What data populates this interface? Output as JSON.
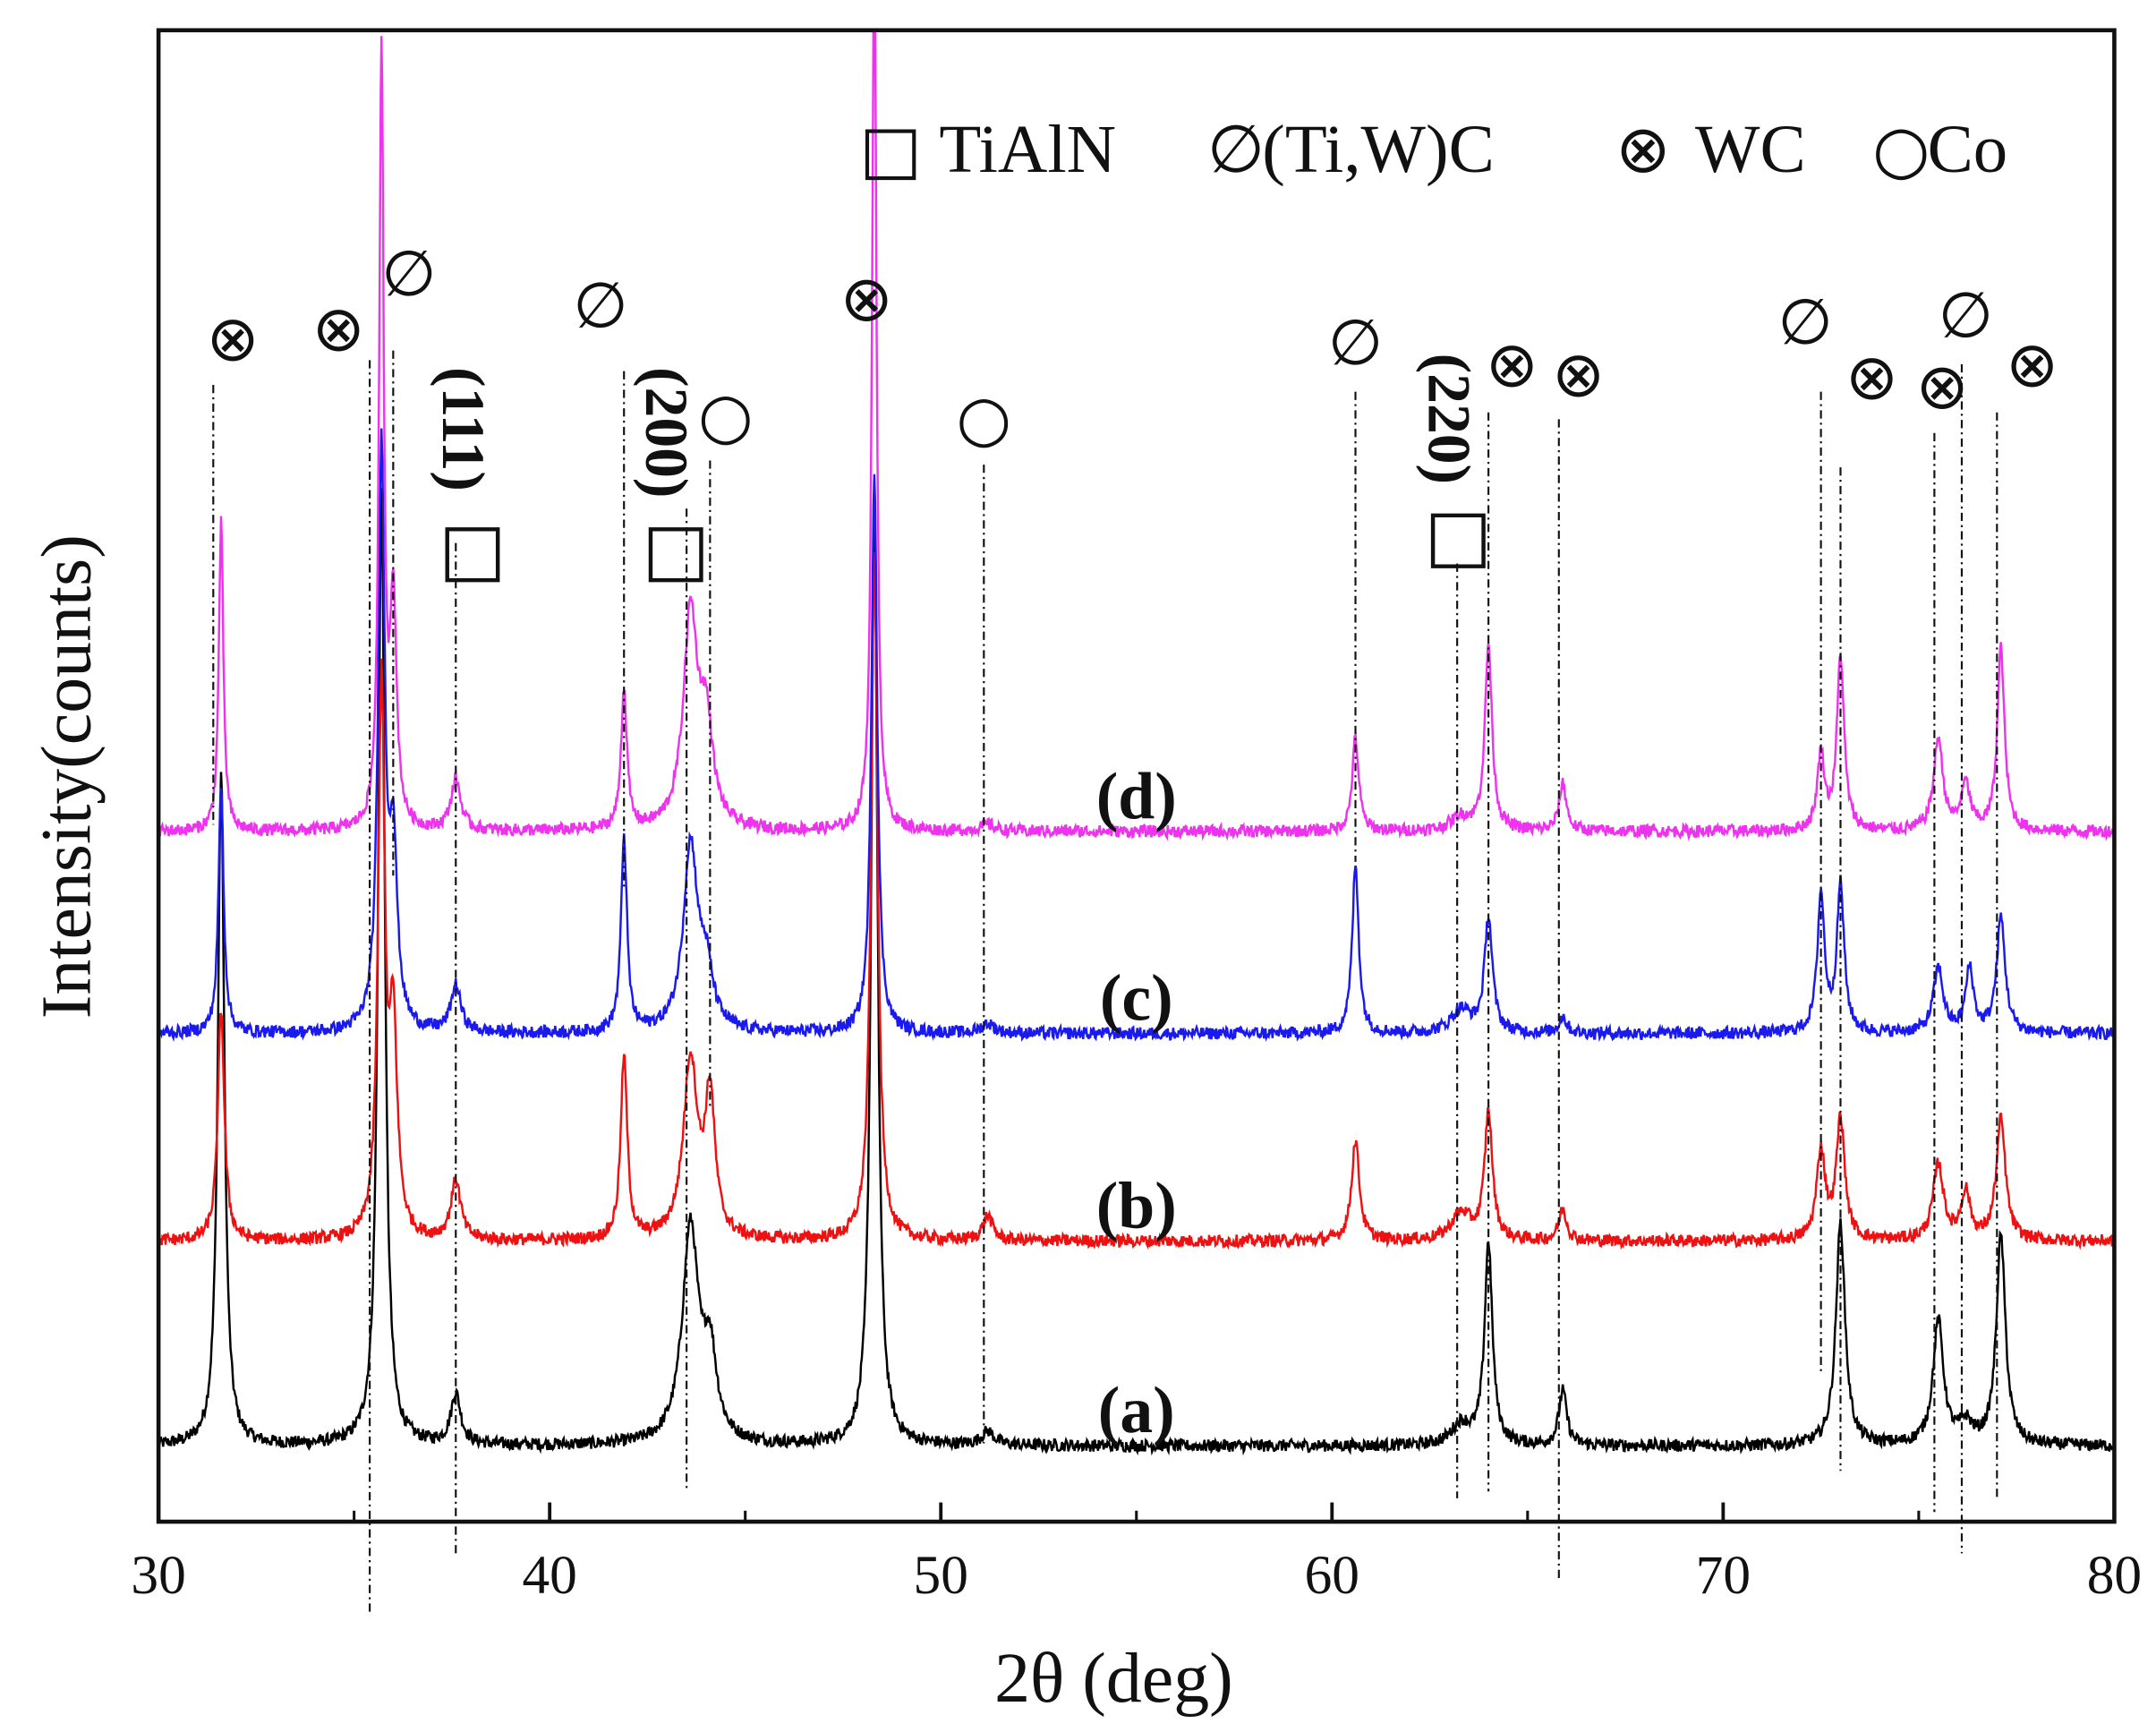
{
  "chart_data": {
    "type": "line",
    "title": "",
    "xlabel": "2θ (deg)",
    "ylabel": "Intensity(counts)",
    "xlim": [
      30,
      80
    ],
    "ylim": [
      0,
      1085
    ],
    "x_ticks": [
      30,
      40,
      50,
      60,
      70,
      80
    ],
    "x_tick_labels": [
      "30",
      "40",
      "50",
      "60",
      "70",
      "80"
    ],
    "x_minor_ticks": [
      35,
      45,
      55,
      65,
      75
    ],
    "grid": false,
    "legend": {
      "placement": "top-right",
      "entries": [
        {
          "symbol": "□",
          "label": "TiAlN"
        },
        {
          "symbol": "∅",
          "label": "(Ti,W)C"
        },
        {
          "symbol": "⊗",
          "label": "WC"
        },
        {
          "symbol": "○",
          "label": "Co"
        }
      ]
    },
    "series": [
      {
        "name": "(a)",
        "color": "#000000",
        "baseline": 55,
        "label_x": 55,
        "peaks": [
          [
            31.6,
            490,
            0.1
          ],
          [
            35.7,
            700,
            0.1
          ],
          [
            37.6,
            37,
            0.15
          ],
          [
            43.6,
            157,
            0.25
          ],
          [
            44.1,
            60,
            0.2
          ],
          [
            48.3,
            680,
            0.1
          ],
          [
            51.2,
            10,
            0.2
          ],
          [
            63.3,
            15,
            0.3
          ],
          [
            64.0,
            147,
            0.12
          ],
          [
            65.9,
            40,
            0.12
          ],
          [
            73.0,
            162,
            0.14
          ],
          [
            75.5,
            90,
            0.16
          ],
          [
            76.2,
            15,
            0.2
          ],
          [
            77.1,
            152,
            0.14
          ]
        ]
      },
      {
        "name": "(b)",
        "color": "#ee1111",
        "baseline": 204,
        "label_x": 55,
        "peaks": [
          [
            31.6,
            168,
            0.1
          ],
          [
            35.7,
            400,
            0.1
          ],
          [
            36.0,
            150,
            0.12
          ],
          [
            37.6,
            43,
            0.15
          ],
          [
            41.9,
            133,
            0.1
          ],
          [
            43.6,
            130,
            0.22
          ],
          [
            44.1,
            100,
            0.15
          ],
          [
            48.3,
            500,
            0.1
          ],
          [
            51.2,
            18,
            0.15
          ],
          [
            60.6,
            73,
            0.12
          ],
          [
            63.3,
            20,
            0.3
          ],
          [
            64.0,
            93,
            0.12
          ],
          [
            65.9,
            23,
            0.12
          ],
          [
            72.5,
            65,
            0.13
          ],
          [
            73.0,
            88,
            0.13
          ],
          [
            75.5,
            55,
            0.16
          ],
          [
            76.2,
            35,
            0.14
          ],
          [
            77.1,
            88,
            0.14
          ]
        ]
      },
      {
        "name": "(c)",
        "color": "#1a1aee",
        "baseline": 355,
        "label_x": 55,
        "peaks": [
          [
            31.6,
            180,
            0.08
          ],
          [
            35.7,
            420,
            0.1
          ],
          [
            36.0,
            130,
            0.12
          ],
          [
            37.6,
            34,
            0.15
          ],
          [
            41.9,
            142,
            0.09
          ],
          [
            43.6,
            135,
            0.22
          ],
          [
            44.0,
            40,
            0.2
          ],
          [
            48.3,
            407,
            0.09
          ],
          [
            51.2,
            7,
            0.2
          ],
          [
            60.6,
            122,
            0.1
          ],
          [
            63.3,
            17,
            0.3
          ],
          [
            64.0,
            84,
            0.12
          ],
          [
            65.9,
            12,
            0.12
          ],
          [
            72.5,
            100,
            0.11
          ],
          [
            73.0,
            107,
            0.11
          ],
          [
            75.5,
            47,
            0.15
          ],
          [
            76.3,
            47,
            0.12
          ],
          [
            77.1,
            84,
            0.13
          ]
        ]
      },
      {
        "name": "(d)",
        "color": "#ee33ee",
        "baseline": 502,
        "label_x": 55,
        "peaks": [
          [
            31.6,
            225,
            0.07
          ],
          [
            35.7,
            560,
            0.07
          ],
          [
            36.0,
            165,
            0.1
          ],
          [
            37.6,
            37,
            0.15
          ],
          [
            41.9,
            102,
            0.09
          ],
          [
            43.6,
            155,
            0.22
          ],
          [
            44.0,
            70,
            0.2
          ],
          [
            48.3,
            640,
            0.07
          ],
          [
            51.2,
            5,
            0.2
          ],
          [
            60.6,
            68,
            0.1
          ],
          [
            63.3,
            10,
            0.3
          ],
          [
            64.0,
            135,
            0.11
          ],
          [
            65.9,
            35,
            0.11
          ],
          [
            72.5,
            55,
            0.11
          ],
          [
            73.0,
            127,
            0.11
          ],
          [
            75.5,
            67,
            0.14
          ],
          [
            76.2,
            33,
            0.14
          ],
          [
            77.1,
            133,
            0.11
          ]
        ]
      }
    ],
    "phase_markers": [
      {
        "symbol": "⊗",
        "x": 31.9,
        "y": 845
      },
      {
        "symbol": "⊗",
        "x": 34.6,
        "y": 852
      },
      {
        "symbol": "∅",
        "x": 36.4,
        "y": 892
      },
      {
        "symbol": "∅",
        "x": 41.3,
        "y": 869
      },
      {
        "symbol": "○",
        "x": 44.5,
        "y": 789
      },
      {
        "symbol": "⊗",
        "x": 48.1,
        "y": 874
      },
      {
        "symbol": "○",
        "x": 51.1,
        "y": 787
      },
      {
        "symbol": "∅",
        "x": 60.6,
        "y": 842
      },
      {
        "symbol": "⊗",
        "x": 64.6,
        "y": 826
      },
      {
        "symbol": "⊗",
        "x": 66.3,
        "y": 819
      },
      {
        "symbol": "∅",
        "x": 72.1,
        "y": 857
      },
      {
        "symbol": "⊗",
        "x": 73.8,
        "y": 817
      },
      {
        "symbol": "⊗",
        "x": 75.6,
        "y": 810
      },
      {
        "symbol": "∅",
        "x": 76.2,
        "y": 862
      },
      {
        "symbol": "⊗",
        "x": 77.9,
        "y": 826
      }
    ],
    "hkl_labels": [
      {
        "text": "(111)",
        "box": "□",
        "x": 37.8,
        "y": 840
      },
      {
        "text": "(200)",
        "box": "□",
        "x": 43.0,
        "y": 840
      },
      {
        "text": "(220)",
        "box": "□",
        "x": 63.0,
        "y": 850
      }
    ],
    "drop_lines": [
      [
        31.4,
        827,
        507
      ],
      [
        35.4,
        845,
        -68
      ],
      [
        36.0,
        852,
        470
      ],
      [
        37.6,
        712,
        -23
      ],
      [
        41.9,
        837,
        460
      ],
      [
        43.5,
        737,
        22
      ],
      [
        44.1,
        772,
        300
      ],
      [
        51.1,
        769,
        57
      ],
      [
        60.6,
        822,
        480
      ],
      [
        63.2,
        697,
        17
      ],
      [
        64.0,
        807,
        22
      ],
      [
        65.8,
        802,
        -43
      ],
      [
        72.5,
        822,
        107
      ],
      [
        73.0,
        767,
        37
      ],
      [
        75.4,
        792,
        7
      ],
      [
        76.1,
        842,
        -23
      ],
      [
        77.0,
        807,
        17
      ]
    ]
  }
}
